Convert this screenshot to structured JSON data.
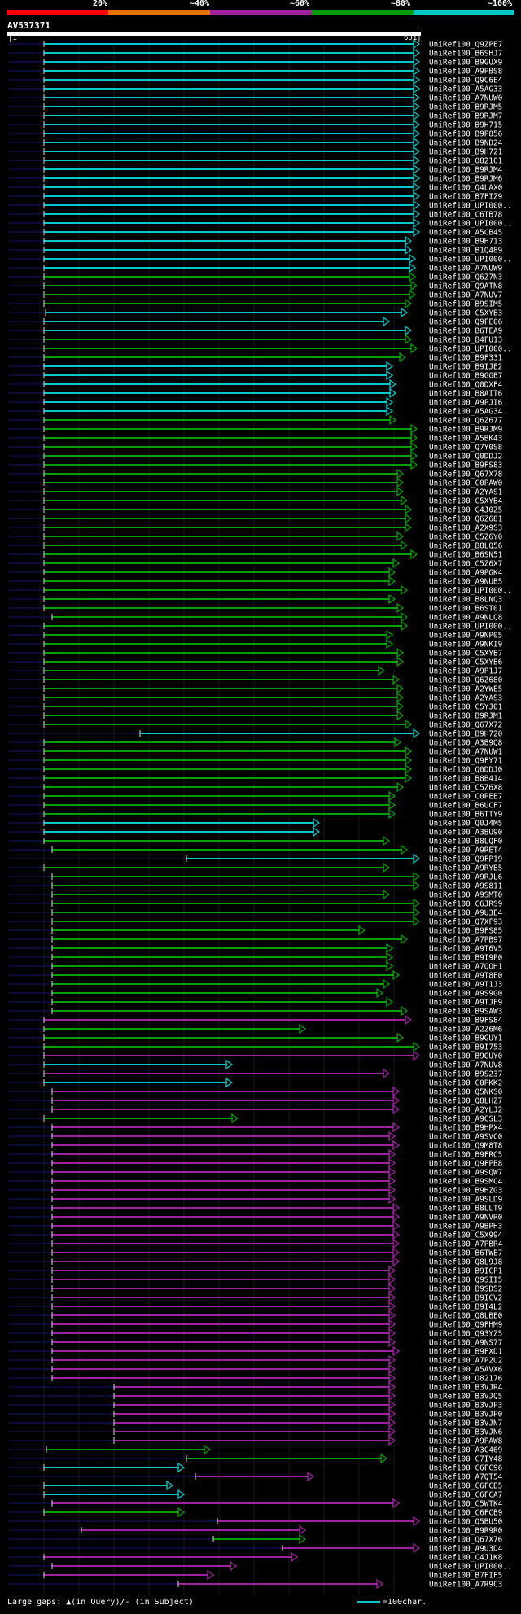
{
  "legend": {
    "markers": [
      "20%",
      "~40%",
      "~60%",
      "~80%",
      "~100%"
    ],
    "colors": [
      "#ff0000",
      "#e67300",
      "#a020a0",
      "#00a000",
      "#00c8c8"
    ]
  },
  "query": {
    "id": "AV537371",
    "start": "1",
    "end": "601"
  },
  "hits": [
    [
      "UniRef100_Q9ZPE7",
      4,
      1,
      54,
      515
    ],
    [
      "UniRef100_B6SHJ7",
      4,
      1,
      54,
      515
    ],
    [
      "UniRef100_B9GUX9",
      4,
      1,
      54,
      515
    ],
    [
      "UniRef100_A9PBS8",
      4,
      1,
      54,
      515
    ],
    [
      "UniRef100_Q9C6E4",
      4,
      1,
      54,
      515
    ],
    [
      "UniRef100_A5AG33",
      4,
      1,
      54,
      515
    ],
    [
      "UniRef100_A7NUW0",
      4,
      1,
      54,
      515
    ],
    [
      "UniRef100_B9RJM5",
      4,
      1,
      54,
      515
    ],
    [
      "UniRef100_B9RJM7",
      4,
      1,
      54,
      515
    ],
    [
      "UniRef100_B9H715",
      4,
      1,
      54,
      515
    ],
    [
      "UniRef100_B9P856",
      4,
      1,
      54,
      515
    ],
    [
      "UniRef100_B9ND24",
      4,
      1,
      54,
      515
    ],
    [
      "UniRef100_B9H721",
      4,
      1,
      54,
      515
    ],
    [
      "UniRef100_O82161",
      4,
      1,
      54,
      515
    ],
    [
      "UniRef100_B9RJM4",
      4,
      1,
      54,
      515
    ],
    [
      "UniRef100_B9RJM6",
      4,
      1,
      54,
      515
    ],
    [
      "UniRef100_Q4LAX0",
      4,
      1,
      54,
      515
    ],
    [
      "UniRef100_B7FIZ9",
      4,
      1,
      54,
      515
    ],
    [
      "UniRef100_UPI000..",
      4,
      1,
      54,
      515
    ],
    [
      "UniRef100_C6TB78",
      4,
      1,
      54,
      515
    ],
    [
      "UniRef100_UPI000..",
      4,
      1,
      54,
      515
    ],
    [
      "UniRef100_A5CB45",
      4,
      1,
      54,
      515
    ],
    [
      "UniRef100_B9H713",
      4,
      1,
      54,
      505
    ],
    [
      "UniRef100_B1Q489",
      4,
      1,
      54,
      505
    ],
    [
      "UniRef100_UPI000..",
      4,
      1,
      54,
      510
    ],
    [
      "UniRef100_A7NUW9",
      4,
      1,
      54,
      510
    ],
    [
      "UniRef100_Q6Z7N3",
      3,
      1,
      54,
      510
    ],
    [
      "UniRef100_Q9ATN8",
      3,
      1,
      54,
      512
    ],
    [
      "UniRef100_A7NUV7",
      3,
      1,
      54,
      510
    ],
    [
      "UniRef100_B9SIM5",
      3,
      1,
      54,
      505
    ],
    [
      "UniRef100_C5XYB3",
      4,
      1,
      56,
      500
    ],
    [
      "UniRef100_Q9FE06",
      4,
      1,
      54,
      478
    ],
    [
      "UniRef100_B6TEA9",
      4,
      1,
      54,
      505
    ],
    [
      "UniRef100_B4FU13",
      3,
      1,
      54,
      505
    ],
    [
      "UniRef100_UPI000..",
      3,
      1,
      54,
      512
    ],
    [
      "UniRef100_B9F331",
      3,
      1,
      54,
      498
    ],
    [
      "UniRef100_B9IJE2",
      4,
      1,
      54,
      482
    ],
    [
      "UniRef100_B9GGB7",
      4,
      1,
      54,
      482
    ],
    [
      "UniRef100_Q0DXF4",
      4,
      1,
      54,
      486
    ],
    [
      "UniRef100_B8AIT6",
      4,
      1,
      54,
      486
    ],
    [
      "UniRef100_A9PJI6",
      4,
      1,
      54,
      482
    ],
    [
      "UniRef100_A5AG34",
      4,
      1,
      54,
      482
    ],
    [
      "UniRef100_Q6Z677",
      3,
      1,
      54,
      486
    ],
    [
      "UniRef100_B9RJM9",
      3,
      1,
      54,
      512
    ],
    [
      "UniRef100_A5BK43",
      3,
      1,
      54,
      512
    ],
    [
      "UniRef100_Q7Y0S8",
      3,
      1,
      54,
      512
    ],
    [
      "UniRef100_Q0DDJ2",
      3,
      1,
      54,
      512
    ],
    [
      "UniRef100_B9FS83",
      3,
      1,
      54,
      512
    ],
    [
      "UniRef100_Q67X78",
      3,
      1,
      54,
      495
    ],
    [
      "UniRef100_C0PAW0",
      3,
      1,
      54,
      495
    ],
    [
      "UniRef100_A2YAS1",
      3,
      1,
      54,
      495
    ],
    [
      "UniRef100_C5XYB4",
      3,
      1,
      54,
      500
    ],
    [
      "UniRef100_C4J0Z5",
      3,
      1,
      54,
      505
    ],
    [
      "UniRef100_Q6Z681",
      3,
      1,
      54,
      505
    ],
    [
      "UniRef100_A2X9S3",
      3,
      1,
      54,
      505
    ],
    [
      "UniRef100_C5Z6Y0",
      3,
      1,
      54,
      495
    ],
    [
      "UniRef100_B8LQ56",
      3,
      1,
      54,
      500
    ],
    [
      "UniRef100_B6SN51",
      3,
      1,
      54,
      512
    ],
    [
      "UniRef100_C5Z6X7",
      3,
      1,
      54,
      490
    ],
    [
      "UniRef100_A9PGK4",
      3,
      1,
      54,
      485
    ],
    [
      "UniRef100_A9NUB5",
      3,
      1,
      54,
      485
    ],
    [
      "UniRef100_UPI000..",
      3,
      1,
      54,
      500
    ],
    [
      "UniRef100_B8LNQ3",
      3,
      1,
      54,
      485
    ],
    [
      "UniRef100_B6ST01",
      3,
      1,
      54,
      495
    ],
    [
      "UniRef100_A9NLQ8",
      3,
      1,
      64,
      500
    ],
    [
      "UniRef100_UPI000..",
      3,
      1,
      54,
      500
    ],
    [
      "UniRef100_A9NP05",
      3,
      1,
      54,
      482
    ],
    [
      "UniRef100_A9NKI9",
      3,
      1,
      54,
      482
    ],
    [
      "UniRef100_C5XYB7",
      3,
      1,
      54,
      495
    ],
    [
      "UniRef100_C5XYB6",
      3,
      1,
      54,
      495
    ],
    [
      "UniRef100_A9P1J7",
      3,
      1,
      54,
      472
    ],
    [
      "UniRef100_Q6Z680",
      3,
      1,
      54,
      490
    ],
    [
      "UniRef100_A2YWE5",
      3,
      1,
      54,
      495
    ],
    [
      "UniRef100_A2YAS3",
      3,
      1,
      54,
      495
    ],
    [
      "UniRef100_C5YJ01",
      3,
      1,
      54,
      495
    ],
    [
      "UniRef100_B9RJM1",
      3,
      1,
      54,
      495
    ],
    [
      "UniRef100_Q67X72",
      3,
      1,
      54,
      505
    ],
    [
      "UniRef100_B9H720",
      4,
      1,
      172,
      515
    ],
    [
      "UniRef100_A3B9Q8",
      3,
      1,
      54,
      492
    ],
    [
      "UniRef100_A7NUW1",
      3,
      1,
      54,
      505
    ],
    [
      "UniRef100_Q9FY71",
      3,
      1,
      54,
      505
    ],
    [
      "UniRef100_Q0DDJ0",
      3,
      1,
      54,
      505
    ],
    [
      "UniRef100_B8B414",
      3,
      1,
      54,
      505
    ],
    [
      "UniRef100_C5Z6X8",
      3,
      1,
      54,
      495
    ],
    [
      "UniRef100_C0PEE7",
      3,
      1,
      54,
      485
    ],
    [
      "UniRef100_B6UCF7",
      3,
      1,
      54,
      485
    ],
    [
      "UniRef100_B6TTY9",
      3,
      1,
      54,
      485
    ],
    [
      "UniRef100_Q0J4M5",
      4,
      1,
      54,
      392
    ],
    [
      "UniRef100_A3BU90",
      4,
      1,
      54,
      392
    ],
    [
      "UniRef100_B8LQF0",
      3,
      1,
      54,
      478
    ],
    [
      "UniRef100_A9RET4",
      3,
      1,
      64,
      500
    ],
    [
      "UniRef100_Q9FP19",
      4,
      1,
      229,
      515
    ],
    [
      "UniRef100_A9RYB5",
      3,
      1,
      54,
      478
    ],
    [
      "UniRef100_A9RJL6",
      3,
      1,
      64,
      515
    ],
    [
      "UniRef100_A9S811",
      3,
      1,
      64,
      515
    ],
    [
      "UniRef100_A9SMT0",
      3,
      1,
      64,
      478
    ],
    [
      "UniRef100_C6JRS9",
      3,
      1,
      64,
      515
    ],
    [
      "UniRef100_A9U3E4",
      3,
      1,
      64,
      515
    ],
    [
      "UniRef100_Q7XF93",
      3,
      1,
      64,
      515
    ],
    [
      "UniRef100_B9FS85",
      3,
      1,
      64,
      448
    ],
    [
      "UniRef100_A7PB97",
      3,
      1,
      64,
      500
    ],
    [
      "UniRef100_A9T6V5",
      3,
      1,
      64,
      482
    ],
    [
      "UniRef100_B9I9P0",
      3,
      1,
      64,
      482
    ],
    [
      "UniRef100_A7QOH1",
      3,
      1,
      64,
      482
    ],
    [
      "UniRef100_A9T8E0",
      3,
      1,
      64,
      490
    ],
    [
      "UniRef100_A9T1J3",
      3,
      1,
      64,
      478
    ],
    [
      "UniRef100_A9S9G0",
      3,
      1,
      64,
      470
    ],
    [
      "UniRef100_A9TJF9",
      3,
      1,
      64,
      482
    ],
    [
      "UniRef100_B9SAW3",
      3,
      1,
      64,
      500
    ],
    [
      "UniRef100_B9FS84",
      2,
      1,
      54,
      505
    ],
    [
      "UniRef100_A2Z6M6",
      3,
      1,
      54,
      375
    ],
    [
      "UniRef100_B9GUY1",
      3,
      1,
      54,
      495
    ],
    [
      "UniRef100_B9I753",
      3,
      1,
      54,
      515
    ],
    [
      "UniRef100_B9GUY0",
      2,
      1,
      54,
      515
    ],
    [
      "UniRef100_A7NUV8",
      4,
      1,
      54,
      285
    ],
    [
      "UniRef100_B9S237",
      2,
      1,
      54,
      478
    ],
    [
      "UniRef100_C0PKK2",
      4,
      1,
      54,
      285
    ],
    [
      "UniRef100_Q5NKS0",
      2,
      1,
      64,
      490
    ],
    [
      "UniRef100_Q8LHZ7",
      2,
      1,
      64,
      490
    ],
    [
      "UniRef100_A2YLJ2",
      2,
      1,
      64,
      490
    ],
    [
      "UniRef100_A9CSL3",
      3,
      1,
      54,
      292
    ],
    [
      "UniRef100_B9HPX4",
      2,
      1,
      64,
      490
    ],
    [
      "UniRef100_A9SVC0",
      2,
      1,
      64,
      485
    ],
    [
      "UniRef100_Q9M8T8",
      2,
      1,
      64,
      490
    ],
    [
      "UniRef100_B9FRC5",
      2,
      1,
      64,
      485
    ],
    [
      "UniRef100_Q9FPB8",
      2,
      1,
      64,
      485
    ],
    [
      "UniRef100_A9SQW7",
      2,
      1,
      64,
      485
    ],
    [
      "UniRef100_B9SMC4",
      2,
      1,
      64,
      485
    ],
    [
      "UniRef100_B9HZG3",
      2,
      1,
      64,
      485
    ],
    [
      "UniRef100_A9SLD9",
      2,
      1,
      64,
      485
    ],
    [
      "UniRef100_B8LLT9",
      2,
      1,
      64,
      490
    ],
    [
      "UniRef100_A9NVR0",
      2,
      1,
      64,
      490
    ],
    [
      "UniRef100_A9BPH3",
      2,
      1,
      64,
      490
    ],
    [
      "UniRef100_C5X994",
      2,
      1,
      64,
      490
    ],
    [
      "UniRef100_A7PBR4",
      2,
      1,
      64,
      490
    ],
    [
      "UniRef100_B6TWE7",
      2,
      1,
      64,
      490
    ],
    [
      "UniRef100_Q8L9J8",
      2,
      1,
      64,
      490
    ],
    [
      "UniRef100_B9ICP1",
      2,
      1,
      64,
      485
    ],
    [
      "UniRef100_Q9SII5",
      2,
      1,
      64,
      485
    ],
    [
      "UniRef100_B9SDS2",
      2,
      1,
      64,
      485
    ],
    [
      "UniRef100_B9ICV2",
      2,
      1,
      64,
      485
    ],
    [
      "UniRef100_B9I4L2",
      2,
      1,
      64,
      485
    ],
    [
      "UniRef100_Q8LBE0",
      2,
      1,
      64,
      485
    ],
    [
      "UniRef100_Q9FHM9",
      2,
      1,
      64,
      485
    ],
    [
      "UniRef100_Q93YZ5",
      2,
      1,
      64,
      485
    ],
    [
      "UniRef100_A9NS77",
      2,
      1,
      64,
      485
    ],
    [
      "UniRef100_B9FXD1",
      2,
      1,
      64,
      490
    ],
    [
      "UniRef100_A7P2U2",
      2,
      1,
      64,
      485
    ],
    [
      "UniRef100_A5AVX6",
      2,
      1,
      64,
      485
    ],
    [
      "UniRef100_O82176",
      2,
      1,
      64,
      485
    ],
    [
      "UniRef100_B3VJR4",
      2,
      1,
      140,
      485
    ],
    [
      "UniRef100_B3VJQ5",
      2,
      1,
      140,
      485
    ],
    [
      "UniRef100_B3VJP3",
      2,
      1,
      140,
      485
    ],
    [
      "UniRef100_B3VJP0",
      2,
      1,
      140,
      485
    ],
    [
      "UniRef100_B3VJN7",
      2,
      1,
      140,
      485
    ],
    [
      "UniRef100_B3VJN6",
      2,
      1,
      140,
      485
    ],
    [
      "UniRef100_A9PAW8",
      2,
      1,
      140,
      485
    ],
    [
      "UniRef100_A3C469",
      3,
      1,
      57,
      258
    ],
    [
      "UniRef100_C7IY48",
      3,
      1,
      229,
      475
    ],
    [
      "UniRef100_C6FC96",
      4,
      1,
      54,
      226
    ],
    [
      "UniRef100_A7QT54",
      2,
      1,
      240,
      385
    ],
    [
      "UniRef100_C6FCB5",
      4,
      1,
      54,
      212
    ],
    [
      "UniRef100_C6FCA7",
      4,
      1,
      54,
      226
    ],
    [
      "UniRef100_C5WTK4",
      2,
      1,
      64,
      490
    ],
    [
      "UniRef100_C6FCB9",
      3,
      1,
      54,
      226
    ],
    [
      "UniRef100_Q5BU50",
      2,
      1,
      267,
      515
    ],
    [
      "UniRef100_B9R9R0",
      2,
      1,
      100,
      375
    ],
    [
      "UniRef100_Q67X76",
      3,
      1,
      262,
      375
    ],
    [
      "UniRef100_A9U3D4",
      2,
      1,
      347,
      515
    ],
    [
      "UniRef100_C4J1K8",
      2,
      1,
      54,
      365
    ],
    [
      "UniRef100_UPI000..",
      2,
      1,
      64,
      290
    ],
    [
      "UniRef100_B7FIF5",
      2,
      1,
      54,
      262
    ],
    [
      "UniRef100_A7R9C3",
      2,
      1,
      219,
      470
    ]
  ],
  "footer": {
    "gaps": "Large gaps: ▲(in Query)/- (in Subject)",
    "scale": "=100char."
  }
}
